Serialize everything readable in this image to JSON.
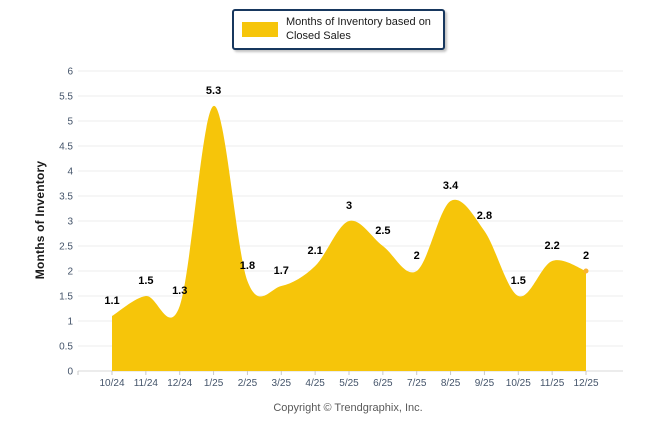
{
  "legend": {
    "label": "Months of Inventory based on Closed Sales",
    "swatch_color": "#F6C50A"
  },
  "footer": {
    "copyright": "Copyright © Trendgraphix, Inc."
  },
  "chart_data": {
    "type": "area",
    "title": "",
    "categories": [
      "10/24",
      "11/24",
      "12/24",
      "1/25",
      "2/25",
      "3/25",
      "4/25",
      "5/25",
      "6/25",
      "7/25",
      "8/25",
      "9/25",
      "10/25",
      "11/25",
      "12/25"
    ],
    "values": [
      1.1,
      1.5,
      1.3,
      5.3,
      1.8,
      1.7,
      2.1,
      3,
      2.5,
      2,
      3.4,
      2.8,
      1.5,
      2.2,
      2
    ],
    "point_labels": [
      "1.1",
      "1.5",
      "1.3",
      "5.3",
      "1.8",
      "1.7",
      "2.1",
      "3",
      "2.5",
      "2",
      "3.4",
      "2.8",
      "1.5",
      "2.2",
      "2"
    ],
    "series_name": "Months of Inventory based on Closed Sales",
    "xlabel": "",
    "ylabel": "Months of Inventory",
    "ylim": [
      0,
      6
    ],
    "ytick_step": 0.5,
    "ytick_labels": [
      "0",
      "0.5",
      "1",
      "1.5",
      "2",
      "2.5",
      "3",
      "3.5",
      "4",
      "4.5",
      "5",
      "5.5",
      "6"
    ],
    "grid": "horizontal",
    "legend_position": "top-center",
    "smooth": true,
    "area_color": "#F6C50A",
    "marker_color": "#F9B234",
    "data_label_color": "#000000",
    "axis_text_color": "#44546A",
    "gridline_color": "#ECECEC",
    "baseline_color": "#D9D9D9"
  }
}
